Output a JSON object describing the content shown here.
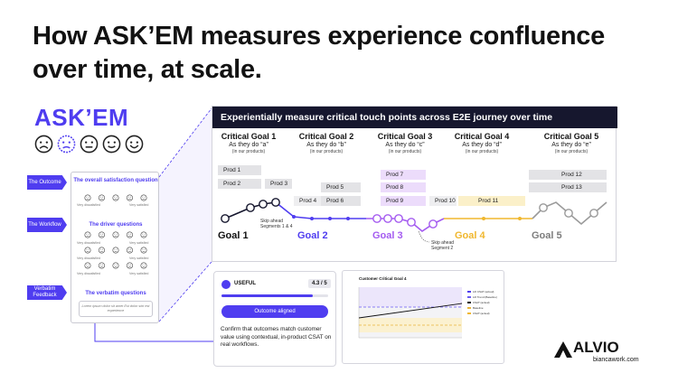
{
  "title": "How ASK’EM measures experience confluence over time, at scale.",
  "brand": "ASK’EM",
  "colors": {
    "accent": "#4f3df0",
    "dark": "#16172e",
    "purple": "#a45bf0",
    "gold": "#f3c74a",
    "grey": "#9a9a9a"
  },
  "faces": [
    "very-sad-face-icon",
    "sad-face-icon",
    "neutral-face-icon",
    "happy-face-icon",
    "very-happy-face-icon"
  ],
  "survey": {
    "tags": [
      "The Outcome",
      "The Workflow",
      "Verbatim Feedback"
    ],
    "q1_title": "The overall satisfaction question",
    "q2_title": "The driver questions",
    "q3_title": "The verbatim questions",
    "very_dissatisfied": "Very dissatisfied",
    "very_satisfied": "Very satisfied",
    "verbatim_placeholder": "Lorem ipsum dolor sit amet Est dolor sint est experience"
  },
  "panel": {
    "header": "Experientially measure critical touch points across E2E journey over time",
    "goals": [
      {
        "title": "Critical Goal 1",
        "sub": "As they do “a”",
        "paren": "(in our products)",
        "label": "Goal 1"
      },
      {
        "title": "Critical Goal 2",
        "sub": "As they do “b”",
        "paren": "(in our products)",
        "label": "Goal 2"
      },
      {
        "title": "Critical Goal 3",
        "sub": "As they do “c”",
        "paren": "(in our products)",
        "label": "Goal 3"
      },
      {
        "title": "Critical Goal 4",
        "sub": "As they do “d”",
        "paren": "(in our products)",
        "label": "Goal 4"
      },
      {
        "title": "Critical Goal 5",
        "sub": "As they do “e”",
        "paren": "(in our products)",
        "label": "Goal 5"
      }
    ],
    "prods": [
      "Prod 1",
      "Prod 2",
      "Prod 3",
      "Prod 4",
      "Prod 5",
      "Prod 6",
      "Prod 7",
      "Prod 8",
      "Prod 9",
      "Prod 10",
      "Prod 11",
      "Prod 12",
      "Prod 13"
    ],
    "skip1": "Skip ahead Segments 1 & 4",
    "skip2": "Skip ahead Segment 2"
  },
  "card": {
    "label": "USEFUL",
    "score": "4.3 / 5",
    "progress": 0.86,
    "button": "Outcome aligned",
    "desc": "Confirm that outcomes match customer value using contextual, in-product CSAT on real workflows."
  },
  "chart": {
    "title": "Customer Critical Goal 4",
    "legend": [
      "Lift CSAT (actual)",
      "Lift Trend (Baseline)",
      "CSAT (actual)",
      "Baseline",
      "CSAT (actual)"
    ]
  },
  "footer": {
    "logo": "ALVIO",
    "site": "biancawork.com"
  }
}
